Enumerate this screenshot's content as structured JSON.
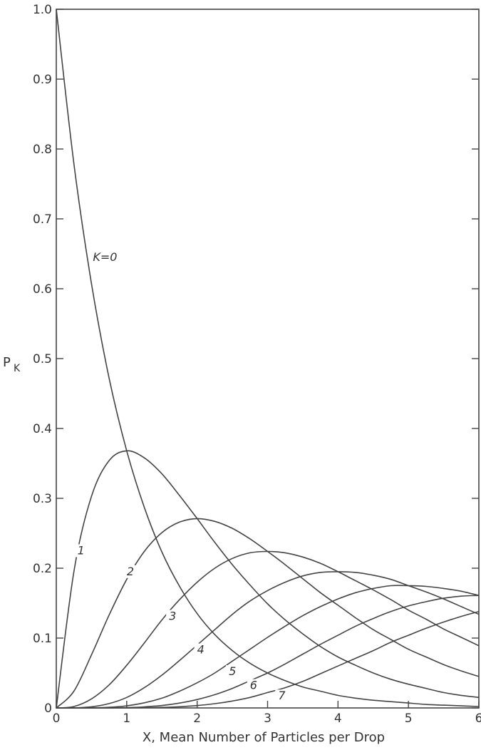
{
  "chart_data": {
    "type": "line",
    "xlabel": "X, Mean Number of Particles per Drop",
    "ylabel_main": "P",
    "ylabel_sub": "K",
    "xlim": [
      0,
      6
    ],
    "ylim": [
      0,
      1.0
    ],
    "xticks": [
      0,
      1,
      2,
      3,
      4,
      5,
      6
    ],
    "xtick_labels": [
      "0",
      "1",
      "2",
      "3",
      "4",
      "5",
      "6"
    ],
    "yticks": [
      0,
      0.1,
      0.2,
      0.3,
      0.4,
      0.5,
      0.6,
      0.7,
      0.8,
      0.9,
      1.0
    ],
    "ytick_labels": [
      "0",
      "0.1",
      "0.2",
      "0.3",
      "0.4",
      "0.5",
      "0.6",
      "0.7",
      "0.8",
      "0.9",
      "1.0"
    ],
    "grid": false,
    "x": [
      0,
      0.25,
      0.5,
      0.75,
      1,
      1.25,
      1.5,
      1.75,
      2,
      2.25,
      2.5,
      2.75,
      3,
      3.25,
      3.5,
      3.75,
      4,
      4.25,
      4.5,
      4.75,
      5,
      5.25,
      5.5,
      5.75,
      6
    ],
    "series": [
      {
        "k": 0,
        "label": "K=0",
        "label_x": 0.52,
        "label_y": 0.64,
        "values": [
          1.0,
          0.779,
          0.607,
          0.472,
          0.368,
          0.287,
          0.223,
          0.174,
          0.135,
          0.105,
          0.082,
          0.064,
          0.05,
          0.039,
          0.03,
          0.024,
          0.018,
          0.014,
          0.011,
          0.009,
          0.007,
          0.005,
          0.004,
          0.003,
          0.002
        ]
      },
      {
        "k": 1,
        "label": "1",
        "label_x": 0.3,
        "label_y": 0.22,
        "values": [
          0,
          0.195,
          0.303,
          0.354,
          0.368,
          0.358,
          0.335,
          0.304,
          0.271,
          0.237,
          0.205,
          0.176,
          0.149,
          0.126,
          0.106,
          0.088,
          0.073,
          0.061,
          0.05,
          0.041,
          0.034,
          0.028,
          0.022,
          0.018,
          0.015
        ]
      },
      {
        "k": 2,
        "label": "2",
        "label_x": 1.0,
        "label_y": 0.19,
        "values": [
          0,
          0.024,
          0.076,
          0.133,
          0.184,
          0.224,
          0.251,
          0.266,
          0.271,
          0.267,
          0.257,
          0.242,
          0.224,
          0.205,
          0.185,
          0.165,
          0.147,
          0.129,
          0.112,
          0.098,
          0.084,
          0.073,
          0.062,
          0.053,
          0.045
        ]
      },
      {
        "k": 3,
        "label": "3",
        "label_x": 1.6,
        "label_y": 0.126,
        "values": [
          0,
          0.002,
          0.013,
          0.033,
          0.061,
          0.093,
          0.126,
          0.155,
          0.18,
          0.2,
          0.214,
          0.222,
          0.224,
          0.222,
          0.216,
          0.207,
          0.195,
          0.182,
          0.169,
          0.155,
          0.14,
          0.127,
          0.113,
          0.101,
          0.089
        ]
      },
      {
        "k": 4,
        "label": "4",
        "label_x": 2.0,
        "label_y": 0.078,
        "values": [
          0,
          0.0001,
          0.0016,
          0.0062,
          0.015,
          0.029,
          0.047,
          0.068,
          0.09,
          0.112,
          0.134,
          0.153,
          0.168,
          0.18,
          0.189,
          0.194,
          0.195,
          0.194,
          0.19,
          0.184,
          0.175,
          0.166,
          0.156,
          0.145,
          0.134
        ]
      },
      {
        "k": 5,
        "label": "5",
        "label_x": 2.45,
        "label_y": 0.047,
        "values": [
          0,
          0,
          0.0002,
          0.0009,
          0.0031,
          0.0073,
          0.014,
          0.024,
          0.036,
          0.05,
          0.067,
          0.084,
          0.101,
          0.117,
          0.132,
          0.145,
          0.156,
          0.165,
          0.171,
          0.175,
          0.175,
          0.174,
          0.171,
          0.167,
          0.161
        ]
      },
      {
        "k": 6,
        "label": "6",
        "label_x": 2.75,
        "label_y": 0.027,
        "values": [
          0,
          0,
          0,
          0.0001,
          0.0005,
          0.0015,
          0.0035,
          0.0069,
          0.012,
          0.019,
          0.028,
          0.039,
          0.05,
          0.063,
          0.077,
          0.091,
          0.104,
          0.117,
          0.128,
          0.138,
          0.146,
          0.152,
          0.157,
          0.16,
          0.161
        ]
      },
      {
        "k": 7,
        "label": "7",
        "label_x": 3.15,
        "label_y": 0.012,
        "values": [
          0,
          0,
          0,
          0,
          0.0001,
          0.0003,
          0.0008,
          0.0017,
          0.0034,
          0.0061,
          0.0099,
          0.015,
          0.022,
          0.029,
          0.038,
          0.049,
          0.06,
          0.071,
          0.082,
          0.094,
          0.104,
          0.114,
          0.123,
          0.131,
          0.138
        ]
      }
    ]
  }
}
